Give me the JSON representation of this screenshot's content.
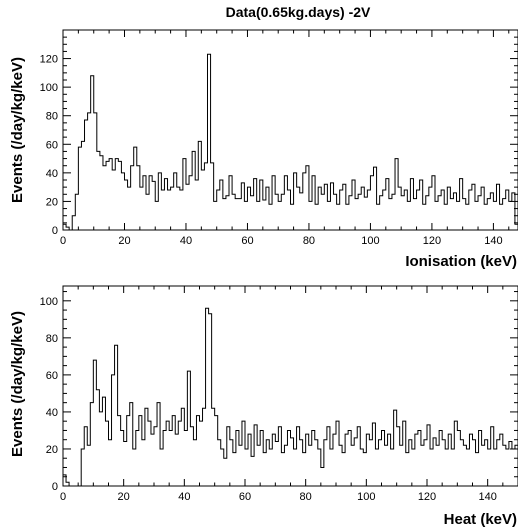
{
  "title": "Data(0.65kg.days) -2V",
  "colors": {
    "line": "#000000",
    "background": "#ffffff"
  },
  "chart_data": [
    {
      "type": "line",
      "title": "Data(0.65kg.days) -2V",
      "xlabel": "Ionisation (keV)",
      "ylabel": "Events (/day/kg/keV)",
      "xlim": [
        0,
        148
      ],
      "ylim": [
        0,
        140
      ],
      "xticks": [
        0,
        20,
        40,
        60,
        80,
        100,
        120,
        140
      ],
      "yticks": [
        0,
        20,
        40,
        60,
        80,
        100,
        120
      ],
      "grid": false,
      "series": [
        {
          "step": "histogram",
          "bin_width": 1,
          "x": [
            0,
            1,
            2,
            3,
            4,
            5,
            6,
            7,
            8,
            9,
            10,
            11,
            12,
            13,
            14,
            15,
            16,
            17,
            18,
            19,
            20,
            21,
            22,
            23,
            24,
            25,
            26,
            27,
            28,
            29,
            30,
            31,
            32,
            33,
            34,
            35,
            36,
            37,
            38,
            39,
            40,
            41,
            42,
            43,
            44,
            45,
            46,
            47,
            48,
            49,
            50,
            51,
            52,
            53,
            54,
            55,
            56,
            57,
            58,
            59,
            60,
            61,
            62,
            63,
            64,
            65,
            66,
            67,
            68,
            69,
            70,
            71,
            72,
            73,
            74,
            75,
            76,
            77,
            78,
            79,
            80,
            81,
            82,
            83,
            84,
            85,
            86,
            87,
            88,
            89,
            90,
            91,
            92,
            93,
            94,
            95,
            96,
            97,
            98,
            99,
            100,
            101,
            102,
            103,
            104,
            105,
            106,
            107,
            108,
            109,
            110,
            111,
            112,
            113,
            114,
            115,
            116,
            117,
            118,
            119,
            120,
            121,
            122,
            123,
            124,
            125,
            126,
            127,
            128,
            129,
            130,
            131,
            132,
            133,
            134,
            135,
            136,
            137,
            138,
            139,
            140,
            141,
            142,
            143,
            144,
            145,
            146,
            147
          ],
          "values": [
            4,
            2,
            0,
            10,
            25,
            58,
            62,
            77,
            82,
            108,
            82,
            55,
            52,
            45,
            48,
            50,
            42,
            50,
            48,
            40,
            35,
            30,
            45,
            58,
            45,
            30,
            38,
            25,
            38,
            34,
            20,
            40,
            28,
            36,
            28,
            30,
            40,
            30,
            28,
            50,
            32,
            38,
            55,
            35,
            62,
            42,
            47,
            123,
            47,
            20,
            28,
            35,
            22,
            24,
            38,
            25,
            22,
            22,
            33,
            20,
            30,
            24,
            36,
            20,
            35,
            21,
            30,
            18,
            38,
            25,
            20,
            25,
            38,
            28,
            18,
            40,
            30,
            26,
            40,
            45,
            20,
            38,
            18,
            30,
            25,
            32,
            20,
            33,
            25,
            18,
            28,
            32,
            18,
            24,
            35,
            22,
            25,
            30,
            23,
            28,
            38,
            44,
            18,
            24,
            28,
            36,
            22,
            25,
            50,
            30,
            24,
            28,
            20,
            36,
            22,
            28,
            35,
            18,
            24,
            30,
            38,
            20,
            24,
            28,
            18,
            30,
            22,
            26,
            20,
            36,
            22,
            18,
            28,
            32,
            20,
            24,
            30,
            18,
            22,
            26,
            20,
            32,
            18,
            22,
            28,
            20,
            26,
            4
          ]
        }
      ]
    },
    {
      "type": "line",
      "xlabel": "Heat (keV)",
      "ylabel": "Events (/day/kg/keV)",
      "xlim": [
        0,
        150
      ],
      "ylim": [
        0,
        108
      ],
      "xticks": [
        0,
        20,
        40,
        60,
        80,
        100,
        120,
        140
      ],
      "yticks": [
        0,
        20,
        40,
        60,
        80,
        100
      ],
      "grid": false,
      "series": [
        {
          "step": "histogram",
          "bin_width": 1,
          "x": [
            0,
            1,
            2,
            3,
            4,
            5,
            6,
            7,
            8,
            9,
            10,
            11,
            12,
            13,
            14,
            15,
            16,
            17,
            18,
            19,
            20,
            21,
            22,
            23,
            24,
            25,
            26,
            27,
            28,
            29,
            30,
            31,
            32,
            33,
            34,
            35,
            36,
            37,
            38,
            39,
            40,
            41,
            42,
            43,
            44,
            45,
            46,
            47,
            48,
            49,
            50,
            51,
            52,
            53,
            54,
            55,
            56,
            57,
            58,
            59,
            60,
            61,
            62,
            63,
            64,
            65,
            66,
            67,
            68,
            69,
            70,
            71,
            72,
            73,
            74,
            75,
            76,
            77,
            78,
            79,
            80,
            81,
            82,
            83,
            84,
            85,
            86,
            87,
            88,
            89,
            90,
            91,
            92,
            93,
            94,
            95,
            96,
            97,
            98,
            99,
            100,
            101,
            102,
            103,
            104,
            105,
            106,
            107,
            108,
            109,
            110,
            111,
            112,
            113,
            114,
            115,
            116,
            117,
            118,
            119,
            120,
            121,
            122,
            123,
            124,
            125,
            126,
            127,
            128,
            129,
            130,
            131,
            132,
            133,
            134,
            135,
            136,
            137,
            138,
            139,
            140,
            141,
            142,
            143,
            144,
            145,
            146,
            147,
            148,
            149
          ],
          "values": [
            6,
            2,
            0,
            0,
            0,
            0,
            20,
            32,
            22,
            45,
            68,
            52,
            40,
            48,
            35,
            25,
            60,
            76,
            38,
            30,
            24,
            38,
            45,
            20,
            30,
            38,
            25,
            42,
            35,
            28,
            32,
            45,
            20,
            30,
            35,
            30,
            38,
            28,
            35,
            42,
            30,
            62,
            32,
            25,
            38,
            35,
            42,
            96,
            93,
            42,
            38,
            25,
            20,
            15,
            32,
            25,
            18,
            30,
            22,
            35,
            20,
            28,
            16,
            33,
            22,
            30,
            18,
            25,
            20,
            28,
            24,
            32,
            18,
            22,
            30,
            26,
            20,
            32,
            25,
            18,
            28,
            22,
            30,
            25,
            20,
            10,
            25,
            32,
            20,
            28,
            35,
            22,
            18,
            28,
            30,
            22,
            26,
            32,
            20,
            18,
            28,
            25,
            34,
            20,
            25,
            30,
            22,
            28,
            20,
            41,
            32,
            22,
            35,
            18,
            25,
            20,
            28,
            30,
            22,
            25,
            33,
            20,
            26,
            22,
            30,
            25,
            20,
            28,
            20,
            35,
            30,
            25,
            22,
            20,
            28,
            25,
            18,
            30,
            22,
            25,
            20,
            32,
            20,
            25,
            28,
            22,
            20,
            24,
            20,
            22
          ]
        }
      ]
    }
  ]
}
